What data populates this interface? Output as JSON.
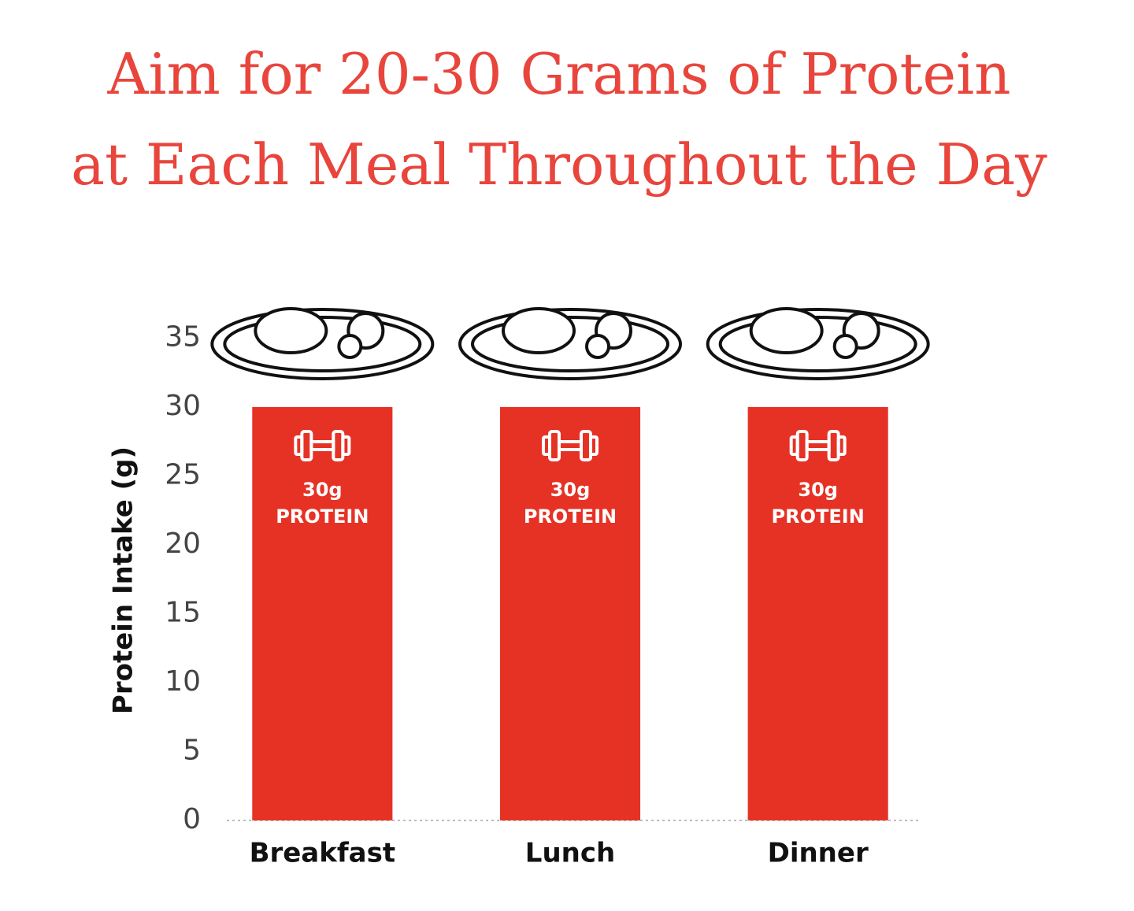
{
  "chart_data": {
    "type": "bar",
    "title": [
      "Aim for 20-30 Grams of Protein",
      "at Each Meal Throughout the Day"
    ],
    "y_label": "Protein Intake (g)",
    "categories": [
      "Breakfast",
      "Lunch",
      "Dinner"
    ],
    "values": [
      30,
      30,
      30
    ],
    "value_labels": [
      "30g",
      "30g",
      "30g"
    ],
    "unit_labels": [
      "PROTEIN",
      "PROTEIN",
      "PROTEIN"
    ],
    "color": "#e63225",
    "ylim": [
      0,
      35
    ],
    "yticks": [
      0,
      5,
      10,
      15,
      20,
      25,
      30,
      35
    ],
    "grid": false
  }
}
